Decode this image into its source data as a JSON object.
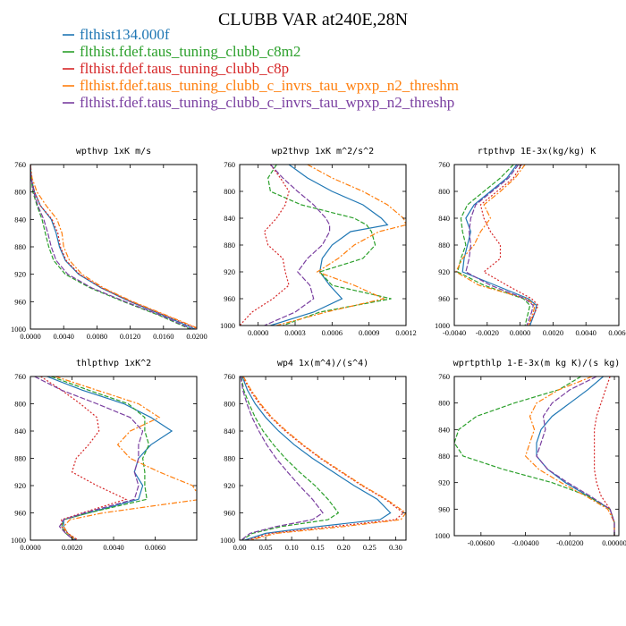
{
  "title": "CLUBB VAR at240E,28N",
  "colors": [
    "#1f77b4",
    "#2ca02c",
    "#d62728",
    "#ff7f0e",
    "#7a3fa0"
  ],
  "legend": [
    "flthist134.000f",
    "flthist.fdef.taus_tuning_clubb_c8m2",
    "flthist.fdef.taus_tuning_clubb_c8p",
    "flthist.fdef.taus_tuning_clubb_c_invrs_tau_wpxp_n2_threshm",
    "flthist.fdef.taus_tuning_clubb_c_invrs_tau_wpxp_n2_threshp"
  ],
  "chart_data": [
    {
      "type": "line",
      "title": "wpthvp  1xK m/s",
      "xlim": [
        0,
        0.02
      ],
      "ylim": [
        760,
        1000
      ],
      "xticks": [
        0,
        0.004,
        0.008,
        0.012,
        0.016,
        0.02
      ],
      "xticklabels": [
        "0.0000",
        "0.0040",
        "0.0080",
        "0.0120",
        "0.0160",
        "0.0200"
      ],
      "yticks": [
        760,
        800,
        840,
        880,
        920,
        960,
        1000
      ],
      "y": [
        760,
        780,
        800,
        820,
        840,
        860,
        880,
        900,
        920,
        940,
        960,
        980,
        1000
      ],
      "series": [
        {
          "values": [
            0,
            0.0001,
            0.0005,
            0.0012,
            0.0025,
            0.0031,
            0.0035,
            0.0042,
            0.0058,
            0.0085,
            0.012,
            0.016,
            0.0198
          ]
        },
        {
          "values": [
            0,
            0.0001,
            0.0003,
            0.0008,
            0.0014,
            0.0018,
            0.0022,
            0.0028,
            0.0042,
            0.0072,
            0.0112,
            0.0155,
            0.0192
          ]
        },
        {
          "values": [
            0,
            0.0001,
            0.0005,
            0.0012,
            0.0026,
            0.0033,
            0.0036,
            0.0043,
            0.0059,
            0.0086,
            0.0121,
            0.0162,
            0.0202
          ]
        },
        {
          "values": [
            0,
            0.0002,
            0.0008,
            0.0019,
            0.0032,
            0.0038,
            0.004,
            0.0047,
            0.0062,
            0.0088,
            0.0123,
            0.0164,
            0.0204
          ]
        },
        {
          "values": [
            0,
            0.0001,
            0.0004,
            0.0009,
            0.0016,
            0.0021,
            0.0025,
            0.0031,
            0.0045,
            0.0074,
            0.0114,
            0.0157,
            0.0194
          ]
        }
      ]
    },
    {
      "type": "line",
      "title": "wp2thvp  1xK m^2/s^2",
      "xlim": [
        -0.00015,
        0.0012
      ],
      "ylim": [
        760,
        1000
      ],
      "xticks": [
        0,
        0.0003,
        0.0006,
        0.0009,
        0.0012
      ],
      "xticklabels": [
        "0.0000",
        "0.0003",
        "0.0006",
        "0.0009",
        "0.0012"
      ],
      "yticks": [
        760,
        800,
        840,
        880,
        920,
        960,
        1000
      ],
      "y": [
        760,
        780,
        800,
        820,
        840,
        850,
        860,
        880,
        900,
        920,
        940,
        960,
        980,
        1000
      ],
      "series": [
        {
          "values": [
            0.00025,
            0.0004,
            0.0006,
            0.00085,
            0.001,
            0.00105,
            0.00075,
            0.0006,
            0.00052,
            0.0005,
            0.00058,
            0.00068,
            0.00045,
            0.0001
          ]
        },
        {
          "values": [
            0.00015,
            8e-05,
            0.0001,
            0.00035,
            0.00078,
            0.00088,
            0.00092,
            0.00095,
            0.00085,
            0.0005,
            0.0006,
            0.00108,
            0.0005,
            0.0002
          ]
        },
        {
          "values": [
            0.0001,
            0.00018,
            0.00025,
            0.00022,
            0.00015,
            0.0001,
            5e-05,
            8e-05,
            0.0002,
            0.00022,
            0.00025,
            0.00012,
            -5e-05,
            -0.00015
          ]
        },
        {
          "values": [
            0.0004,
            0.0006,
            0.00085,
            0.00105,
            0.00118,
            0.0012,
            0.00098,
            0.00078,
            0.00065,
            0.00048,
            0.00078,
            0.00102,
            0.00055,
            0.00015
          ]
        },
        {
          "values": [
            0.0001,
            0.0002,
            0.00032,
            0.00045,
            0.00055,
            0.00058,
            0.00058,
            0.00052,
            0.0004,
            0.00032,
            0.00042,
            0.00045,
            0.0003,
            5e-05
          ]
        }
      ]
    },
    {
      "type": "line",
      "title": "rtpthvp  1E-3x(kg/kg) K",
      "xlim": [
        -0.004,
        0.006
      ],
      "ylim": [
        760,
        1000
      ],
      "xticks": [
        -0.004,
        -0.002,
        0,
        0.002,
        0.004,
        0.006
      ],
      "xticklabels": [
        "-0.0040",
        "-0.0020",
        "0.0000",
        "0.0020",
        "0.0040",
        "0.0060"
      ],
      "yticks": [
        760,
        800,
        840,
        880,
        920,
        960,
        1000
      ],
      "y": [
        760,
        780,
        800,
        820,
        840,
        860,
        880,
        900,
        920,
        940,
        960,
        970,
        980,
        1000
      ],
      "series": [
        {
          "values": [
            -0.0002,
            -0.0008,
            -0.0018,
            -0.0028,
            -0.0033,
            -0.003,
            -0.0032,
            -0.0034,
            -0.0035,
            -0.0015,
            0.0005,
            0.001,
            0.0009,
            0.0006
          ]
        },
        {
          "values": [
            -0.0004,
            -0.0012,
            -0.0022,
            -0.0032,
            -0.0036,
            -0.0035,
            -0.0033,
            -0.0036,
            -0.0038,
            -0.0022,
            0.0002,
            0.0006,
            0.0005,
            0.0003
          ]
        },
        {
          "values": [
            0.0001,
            -0.0004,
            -0.0014,
            -0.0024,
            -0.0022,
            -0.0018,
            -0.0012,
            -0.0012,
            -0.0022,
            -0.0008,
            0.0007,
            0.0011,
            0.0009,
            0.0005
          ]
        },
        {
          "values": [
            0.0003,
            -0.0003,
            -0.0012,
            -0.0022,
            -0.0018,
            -0.0024,
            -0.0028,
            -0.0035,
            -0.0039,
            -0.0025,
            0.0004,
            0.0009,
            0.0008,
            0.0005
          ]
        },
        {
          "values": [
            -0.0001,
            -0.0007,
            -0.0017,
            -0.0027,
            -0.003,
            -0.0031,
            -0.003,
            -0.0031,
            -0.0033,
            -0.0018,
            0.0003,
            0.0008,
            0.0007,
            0.0004
          ]
        }
      ]
    },
    {
      "type": "line",
      "title": "thlpthvp  1xK^2",
      "xlim": [
        0,
        0.008
      ],
      "ylim": [
        760,
        1000
      ],
      "xticks": [
        0,
        0.002,
        0.004,
        0.006
      ],
      "xticklabels": [
        "0.0000",
        "0.0020",
        "0.0040",
        "0.0060"
      ],
      "yticks": [
        760,
        800,
        840,
        880,
        920,
        960,
        1000
      ],
      "y": [
        760,
        780,
        800,
        820,
        840,
        860,
        880,
        900,
        920,
        940,
        960,
        970,
        980,
        990,
        1000
      ],
      "series": [
        {
          "values": [
            0.0008,
            0.0025,
            0.0045,
            0.0058,
            0.0068,
            0.0058,
            0.0052,
            0.005,
            0.0054,
            0.0052,
            0.0028,
            0.0016,
            0.0016,
            0.0018,
            0.0022
          ]
        },
        {
          "values": [
            0.001,
            0.0028,
            0.0047,
            0.0055,
            0.0055,
            0.0057,
            0.0054,
            0.0055,
            0.0055,
            0.0056,
            0.0028,
            0.0016,
            0.0015,
            0.0017,
            0.0021
          ]
        },
        {
          "values": [
            0.0005,
            0.0015,
            0.0024,
            0.0032,
            0.0033,
            0.0028,
            0.0022,
            0.002,
            0.0032,
            0.0046,
            0.0025,
            0.0015,
            0.0015,
            0.0018,
            0.0023
          ]
        },
        {
          "values": [
            0.0012,
            0.0032,
            0.0052,
            0.0062,
            0.0048,
            0.0042,
            0.0048,
            0.0062,
            0.0078,
            0.0082,
            0.0035,
            0.0019,
            0.0016,
            0.0018,
            0.0022
          ]
        },
        {
          "values": [
            0.0002,
            0.0015,
            0.0032,
            0.0048,
            0.0054,
            0.0052,
            0.0052,
            0.005,
            0.0052,
            0.005,
            0.0026,
            0.0016,
            0.0014,
            0.0017,
            0.0021
          ]
        }
      ]
    },
    {
      "type": "line",
      "title": "wp4  1x(m^4)/(s^4)",
      "xlim": [
        0,
        0.32
      ],
      "ylim": [
        760,
        1000
      ],
      "xticks": [
        0,
        0.05,
        0.1,
        0.15,
        0.2,
        0.25,
        0.3
      ],
      "xticklabels": [
        "0.00",
        "0.05",
        "0.10",
        "0.15",
        "0.20",
        "0.25",
        "0.30"
      ],
      "yticks": [
        760,
        800,
        840,
        880,
        920,
        960,
        1000
      ],
      "y": [
        760,
        780,
        800,
        820,
        840,
        860,
        880,
        900,
        920,
        940,
        960,
        970,
        980,
        990,
        1000
      ],
      "series": [
        {
          "values": [
            0.005,
            0.015,
            0.03,
            0.05,
            0.075,
            0.105,
            0.14,
            0.18,
            0.22,
            0.265,
            0.29,
            0.27,
            0.15,
            0.05,
            0.01
          ]
        },
        {
          "values": [
            0.003,
            0.008,
            0.018,
            0.03,
            0.045,
            0.065,
            0.088,
            0.115,
            0.145,
            0.17,
            0.19,
            0.17,
            0.08,
            0.025,
            0.004
          ]
        },
        {
          "values": [
            0.006,
            0.02,
            0.038,
            0.06,
            0.088,
            0.12,
            0.155,
            0.195,
            0.235,
            0.28,
            0.315,
            0.3,
            0.18,
            0.06,
            0.015
          ]
        },
        {
          "values": [
            0.007,
            0.022,
            0.04,
            0.062,
            0.09,
            0.122,
            0.157,
            0.197,
            0.237,
            0.282,
            0.32,
            0.31,
            0.2,
            0.07,
            0.02
          ]
        },
        {
          "values": [
            0.002,
            0.006,
            0.014,
            0.024,
            0.037,
            0.052,
            0.07,
            0.092,
            0.115,
            0.14,
            0.16,
            0.14,
            0.07,
            0.02,
            0.003
          ]
        }
      ]
    },
    {
      "type": "line",
      "title": "wprtpthlp  1-E-3x(m kg K)/(s kg)",
      "xlim": [
        -0.0072,
        0.0002
      ],
      "ylim": [
        760,
        1000
      ],
      "xticks": [
        -0.006,
        -0.004,
        -0.002,
        0
      ],
      "xticklabels": [
        "-0.00600",
        "-0.00400",
        "-0.00200",
        "0.00000"
      ],
      "yticks": [
        760,
        800,
        840,
        880,
        920,
        960,
        1000
      ],
      "y": [
        760,
        780,
        800,
        820,
        840,
        860,
        880,
        900,
        920,
        940,
        960,
        980,
        1000
      ],
      "series": [
        {
          "values": [
            -0.0005,
            -0.0012,
            -0.002,
            -0.0028,
            -0.0033,
            -0.0035,
            -0.0035,
            -0.003,
            -0.0022,
            -0.0012,
            -0.0002,
            0,
            0
          ]
        },
        {
          "values": [
            -0.0015,
            -0.0025,
            -0.0045,
            -0.0062,
            -0.007,
            -0.0072,
            -0.0068,
            -0.005,
            -0.0028,
            -0.0012,
            -0.0002,
            0,
            0
          ]
        },
        {
          "values": [
            -0.0002,
            -0.0004,
            -0.0006,
            -0.0008,
            -0.0009,
            -0.0009,
            -0.0009,
            -0.0009,
            -0.0008,
            -0.0006,
            -0.0002,
            0,
            0
          ]
        },
        {
          "values": [
            -0.001,
            -0.0025,
            -0.0035,
            -0.0038,
            -0.0036,
            -0.0038,
            -0.004,
            -0.0034,
            -0.0024,
            -0.0013,
            -0.0003,
            0,
            0
          ]
        },
        {
          "values": [
            -0.0008,
            -0.002,
            -0.0028,
            -0.0032,
            -0.0031,
            -0.0033,
            -0.0035,
            -0.003,
            -0.0021,
            -0.0011,
            -0.0002,
            0,
            0
          ]
        }
      ]
    }
  ]
}
